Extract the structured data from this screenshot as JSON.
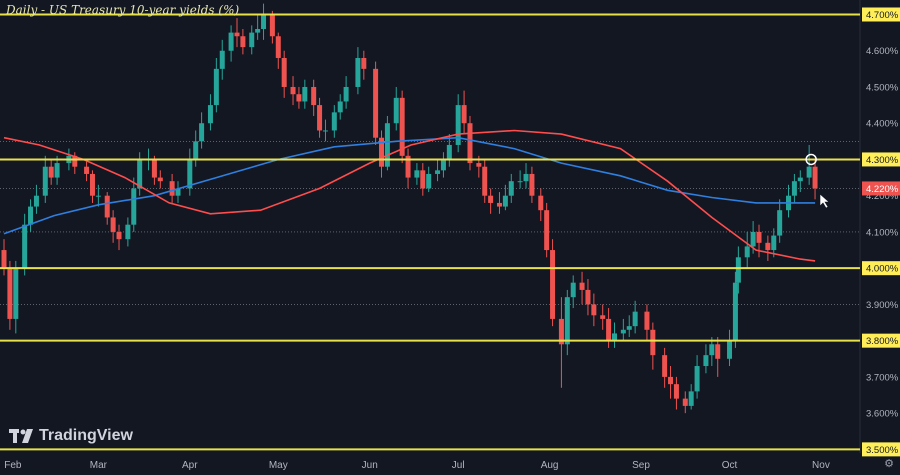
{
  "chart_data": {
    "type": "candlestick",
    "title": "Daily - US Treasury 10-year yields (%)",
    "yticks": [
      "4.700%",
      "4.600%",
      "4.500%",
      "4.400%",
      "4.300%",
      "4.200%",
      "4.100%",
      "4.000%",
      "3.900%",
      "3.800%",
      "3.700%",
      "3.600%",
      "3.500%"
    ],
    "xticks": [
      "Feb",
      "Mar",
      "Apr",
      "May",
      "Jun",
      "Jul",
      "Aug",
      "Sep",
      "Oct",
      "Nov"
    ],
    "ylim": [
      3.49,
      4.74
    ],
    "current_price_label": "4.220%",
    "horizontal_levels": [
      4.7,
      4.3,
      4.0,
      3.8,
      3.5
    ],
    "dotted_levels": [
      4.35,
      4.22,
      4.1,
      3.9
    ],
    "ma_fast": {
      "color": "#ff4d4d",
      "x": [
        "Jan 29",
        "Feb 10",
        "Feb 25",
        "Mar 10",
        "Mar 25",
        "Apr 8",
        "Apr 25",
        "May 15",
        "Jun 1",
        "Jun 15",
        "Jul 1",
        "Jul 20",
        "Aug 5",
        "Aug 25",
        "Sep 10",
        "Sep 25",
        "Oct 10",
        "Oct 25",
        "Oct 30"
      ],
      "y": [
        4.36,
        4.34,
        4.3,
        4.25,
        4.18,
        4.15,
        4.16,
        4.22,
        4.29,
        4.34,
        4.37,
        4.38,
        4.37,
        4.33,
        4.24,
        4.14,
        4.05,
        4.025,
        4.02
      ]
    },
    "ma_slow": {
      "color": "#2f7fe0",
      "x": [
        "Jan 29",
        "Feb 15",
        "Mar 1",
        "Mar 20",
        "Apr 10",
        "May 1",
        "May 20",
        "Jun 10",
        "Jul 1",
        "Jul 20",
        "Aug 5",
        "Aug 25",
        "Sep 10",
        "Sep 25",
        "Oct 10",
        "Oct 30"
      ],
      "y": [
        4.095,
        4.145,
        4.175,
        4.2,
        4.25,
        4.3,
        4.335,
        4.35,
        4.36,
        4.33,
        4.29,
        4.255,
        4.215,
        4.195,
        4.18,
        4.18
      ]
    },
    "candles": {
      "x": [
        "Jan 29",
        "Jan 31",
        "Feb 2",
        "Feb 5",
        "Feb 7",
        "Feb 9",
        "Feb 12",
        "Feb 14",
        "Feb 16",
        "Feb 20",
        "Feb 22",
        "Feb 26",
        "Feb 28",
        "Mar 1",
        "Mar 4",
        "Mar 6",
        "Mar 8",
        "Mar 11",
        "Mar 13",
        "Mar 15",
        "Mar 18",
        "Mar 20",
        "Mar 22",
        "Mar 26",
        "Mar 28",
        "Apr 1",
        "Apr 3",
        "Apr 5",
        "Apr 8",
        "Apr 10",
        "Apr 12",
        "Apr 15",
        "Apr 17",
        "Apr 19",
        "Apr 22",
        "Apr 24",
        "Apr 26",
        "Apr 29",
        "May 1",
        "May 3",
        "May 6",
        "May 8",
        "May 10",
        "May 13",
        "May 15",
        "May 17",
        "May 20",
        "May 22",
        "May 24",
        "May 28",
        "May 30",
        "Jun 3",
        "Jun 5",
        "Jun 7",
        "Jun 10",
        "Jun 12",
        "Jun 14",
        "Jun 17",
        "Jun 19",
        "Jun 21",
        "Jun 24",
        "Jun 26",
        "Jun 28",
        "Jul 1",
        "Jul 3",
        "Jul 5",
        "Jul 8",
        "Jul 10",
        "Jul 12",
        "Jul 15",
        "Jul 17",
        "Jul 19",
        "Jul 22",
        "Jul 24",
        "Jul 26",
        "Jul 29",
        "Jul 31",
        "Aug 2",
        "Aug 5",
        "Aug 7",
        "Aug 9",
        "Aug 12",
        "Aug 14",
        "Aug 16",
        "Aug 19",
        "Aug 21",
        "Aug 23",
        "Aug 26",
        "Aug 28",
        "Aug 30",
        "Sep 3",
        "Sep 5",
        "Sep 9",
        "Sep 11",
        "Sep 13",
        "Sep 16",
        "Sep 18",
        "Sep 20",
        "Sep 23",
        "Sep 25",
        "Sep 27",
        "Oct 1",
        "Oct 3",
        "Oct 4",
        "Oct 7",
        "Oct 9",
        "Oct 11",
        "Oct 14",
        "Oct 16",
        "Oct 18",
        "Oct 21",
        "Oct 23",
        "Oct 25",
        "Oct 28",
        "Oct 30"
      ],
      "open": [
        4.05,
        4.0,
        3.86,
        4.0,
        4.12,
        4.17,
        4.2,
        4.28,
        4.25,
        4.29,
        4.31,
        4.28,
        4.26,
        4.2,
        4.2,
        4.14,
        4.1,
        4.08,
        4.12,
        4.22,
        4.3,
        4.3,
        4.25,
        4.24,
        4.2,
        4.22,
        4.3,
        4.35,
        4.4,
        4.45,
        4.55,
        4.6,
        4.65,
        4.64,
        4.61,
        4.65,
        4.66,
        4.7,
        4.64,
        4.58,
        4.5,
        4.48,
        4.46,
        4.5,
        4.45,
        4.38,
        4.38,
        4.43,
        4.46,
        4.5,
        4.58,
        4.55,
        4.36,
        4.28,
        4.4,
        4.47,
        4.31,
        4.25,
        4.27,
        4.22,
        4.26,
        4.27,
        4.3,
        4.34,
        4.45,
        4.4,
        4.29,
        4.28,
        4.2,
        4.18,
        4.17,
        4.2,
        4.24,
        4.24,
        4.26,
        4.2,
        4.16,
        4.05,
        3.86,
        3.79,
        3.92,
        3.96,
        3.94,
        3.9,
        3.87,
        3.86,
        3.8,
        3.82,
        3.83,
        3.84,
        3.88,
        3.83,
        3.76,
        3.7,
        3.68,
        3.64,
        3.62,
        3.66,
        3.73,
        3.76,
        3.79,
        3.75,
        3.8,
        3.96,
        4.03,
        4.06,
        4.1,
        4.07,
        4.05,
        4.09,
        4.16,
        4.2,
        4.24,
        4.25,
        4.28
      ],
      "close": [
        4.0,
        3.86,
        4.0,
        4.12,
        4.17,
        4.2,
        4.28,
        4.25,
        4.29,
        4.31,
        4.28,
        4.26,
        4.2,
        4.2,
        4.14,
        4.1,
        4.08,
        4.12,
        4.22,
        4.3,
        4.3,
        4.25,
        4.24,
        4.2,
        4.22,
        4.3,
        4.35,
        4.4,
        4.45,
        4.55,
        4.6,
        4.65,
        4.64,
        4.61,
        4.65,
        4.66,
        4.7,
        4.64,
        4.58,
        4.5,
        4.48,
        4.46,
        4.5,
        4.45,
        4.38,
        4.38,
        4.43,
        4.46,
        4.5,
        4.58,
        4.55,
        4.36,
        4.28,
        4.4,
        4.47,
        4.31,
        4.25,
        4.27,
        4.22,
        4.26,
        4.27,
        4.3,
        4.34,
        4.45,
        4.4,
        4.29,
        4.28,
        4.2,
        4.18,
        4.17,
        4.2,
        4.24,
        4.24,
        4.26,
        4.2,
        4.16,
        4.05,
        3.86,
        3.79,
        3.92,
        3.96,
        3.94,
        3.9,
        3.87,
        3.86,
        3.8,
        3.82,
        3.83,
        3.84,
        3.88,
        3.83,
        3.76,
        3.7,
        3.68,
        3.64,
        3.62,
        3.66,
        3.73,
        3.76,
        3.79,
        3.75,
        3.8,
        3.96,
        4.03,
        4.06,
        4.1,
        4.07,
        4.05,
        4.09,
        4.16,
        4.2,
        4.24,
        4.25,
        4.28,
        4.22
      ],
      "high": [
        4.08,
        4.02,
        4.02,
        4.15,
        4.19,
        4.23,
        4.31,
        4.3,
        4.31,
        4.33,
        4.32,
        4.3,
        4.27,
        4.23,
        4.21,
        4.16,
        4.12,
        4.14,
        4.25,
        4.32,
        4.33,
        4.31,
        4.27,
        4.26,
        4.24,
        4.33,
        4.38,
        4.43,
        4.48,
        4.58,
        4.63,
        4.67,
        4.69,
        4.66,
        4.67,
        4.7,
        4.73,
        4.71,
        4.65,
        4.6,
        4.53,
        4.5,
        4.52,
        4.52,
        4.47,
        4.41,
        4.45,
        4.48,
        4.53,
        4.61,
        4.6,
        4.57,
        4.38,
        4.42,
        4.5,
        4.49,
        4.33,
        4.29,
        4.29,
        4.28,
        4.3,
        4.32,
        4.37,
        4.48,
        4.49,
        4.42,
        4.31,
        4.3,
        4.22,
        4.21,
        4.23,
        4.26,
        4.27,
        4.29,
        4.28,
        4.22,
        4.18,
        4.08,
        3.92,
        3.94,
        3.98,
        3.99,
        3.97,
        3.93,
        3.9,
        3.89,
        3.85,
        3.86,
        3.87,
        3.91,
        3.9,
        3.85,
        3.78,
        3.73,
        3.7,
        3.66,
        3.68,
        3.76,
        3.79,
        3.81,
        3.81,
        3.83,
        3.99,
        4.06,
        4.1,
        4.13,
        4.12,
        4.09,
        4.11,
        4.19,
        4.23,
        4.26,
        4.27,
        4.34,
        4.3
      ],
      "low": [
        3.98,
        3.83,
        3.82,
        3.98,
        4.1,
        4.15,
        4.18,
        4.23,
        4.23,
        4.27,
        4.26,
        4.24,
        4.18,
        4.17,
        4.12,
        4.07,
        4.05,
        4.06,
        4.1,
        4.2,
        4.27,
        4.23,
        4.22,
        4.18,
        4.18,
        4.2,
        4.28,
        4.33,
        4.38,
        4.43,
        4.52,
        4.57,
        4.61,
        4.59,
        4.59,
        4.63,
        4.63,
        4.62,
        4.55,
        4.47,
        4.45,
        4.44,
        4.44,
        4.42,
        4.36,
        4.35,
        4.36,
        4.41,
        4.44,
        4.48,
        4.52,
        4.34,
        4.25,
        4.27,
        4.38,
        4.29,
        4.22,
        4.23,
        4.2,
        4.21,
        4.24,
        4.25,
        4.28,
        4.32,
        4.37,
        4.27,
        4.25,
        4.18,
        4.15,
        4.15,
        4.16,
        4.18,
        4.22,
        4.22,
        4.18,
        4.13,
        4.03,
        3.84,
        3.67,
        3.76,
        3.89,
        3.9,
        3.87,
        3.84,
        3.83,
        3.78,
        3.78,
        3.8,
        3.81,
        3.82,
        3.8,
        3.72,
        3.67,
        3.64,
        3.61,
        3.6,
        3.61,
        3.64,
        3.71,
        3.73,
        3.7,
        3.73,
        3.78,
        3.93,
        4.0,
        4.04,
        4.03,
        4.02,
        4.03,
        4.07,
        4.14,
        4.18,
        4.21,
        4.23,
        4.19
      ]
    }
  },
  "colors": {
    "background": "#131722",
    "up": "#26a69a",
    "down": "#ef5350",
    "level_line": "#e8e24a",
    "label_bg": "#ffee58",
    "price_tag": "#ef5350"
  },
  "watermark": "TradingView",
  "icons": {
    "watermark": "tradingview-logo-icon",
    "settings": "gear-icon"
  }
}
